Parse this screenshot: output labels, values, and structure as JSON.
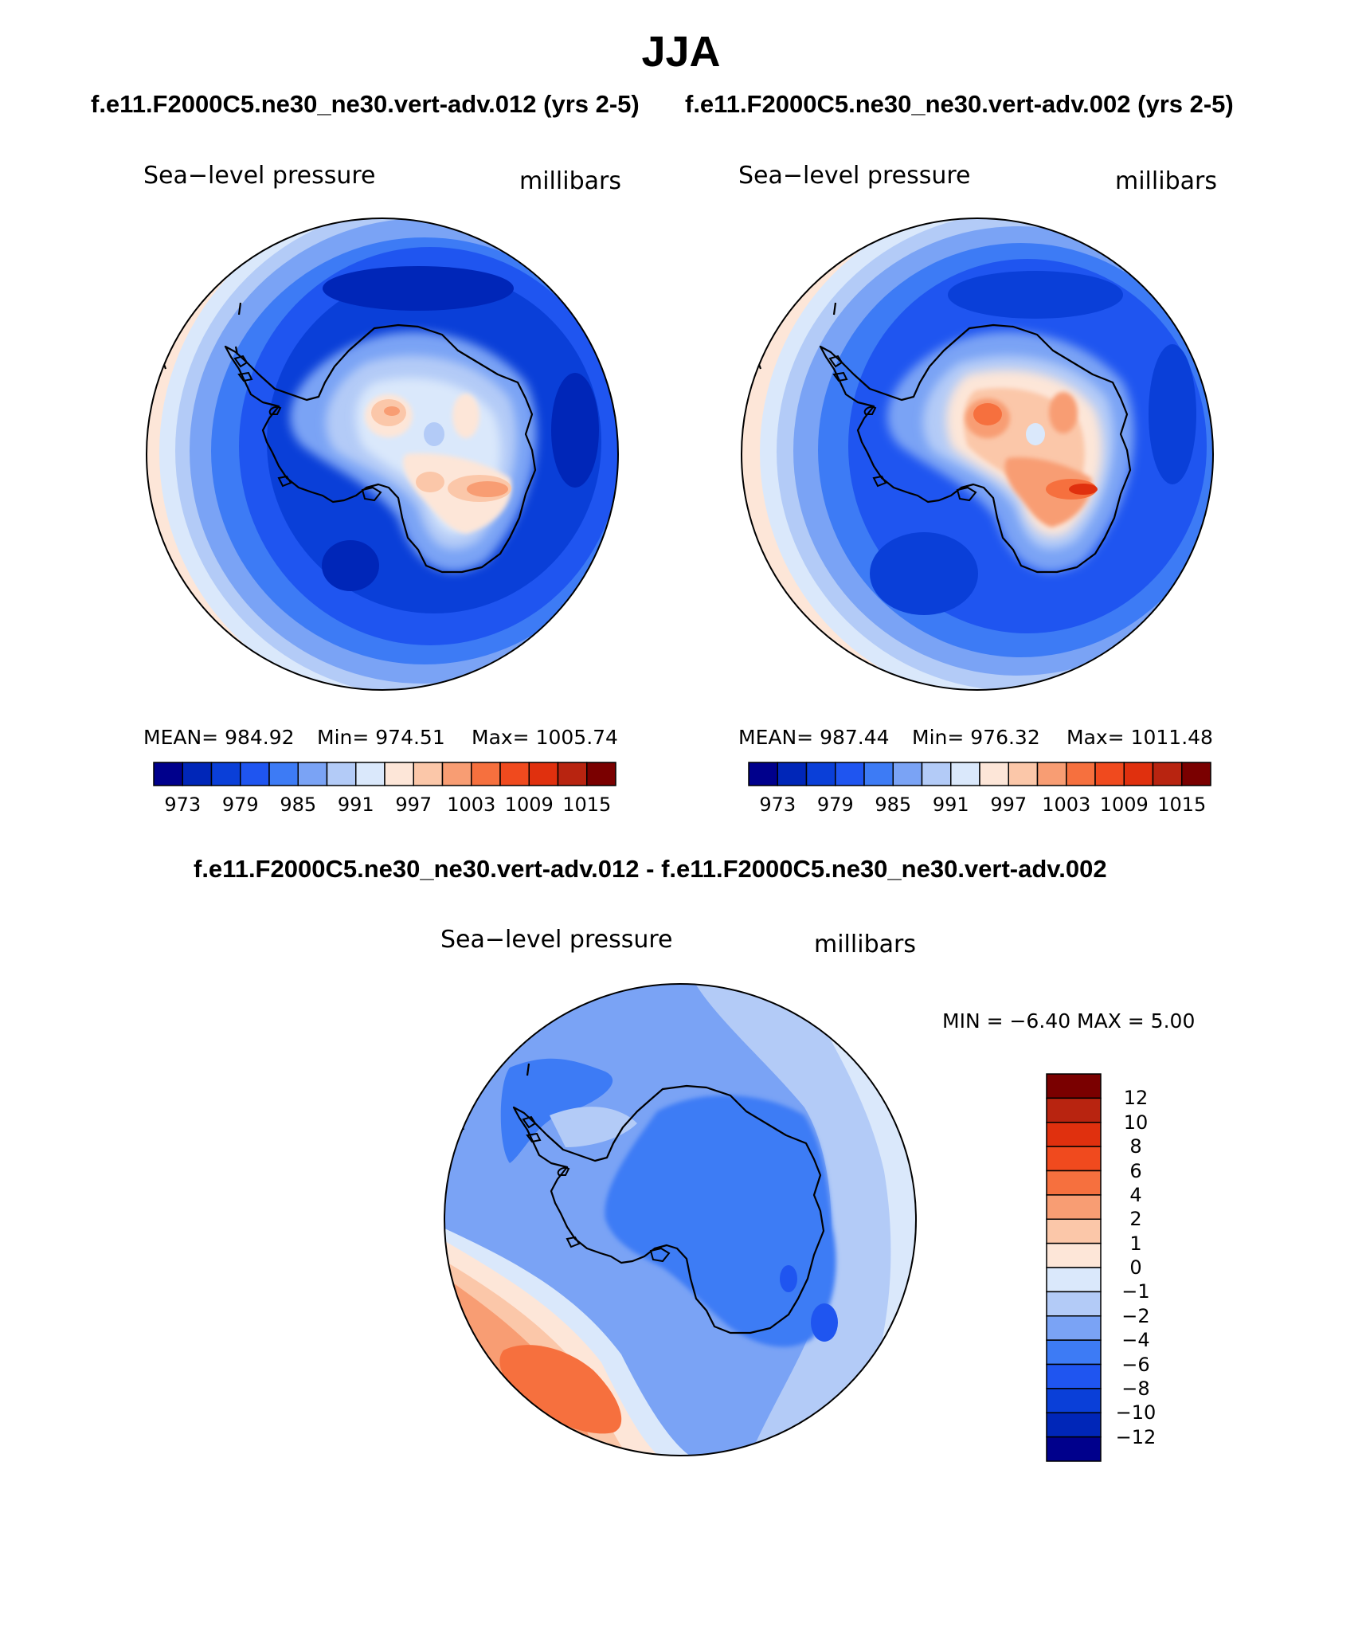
{
  "title": "JJA",
  "case_a": "f.e11.F2000C5.ne30_ne30.vert-adv.012 (yrs 2-5)",
  "case_b": "f.e11.F2000C5.ne30_ne30.vert-adv.002 (yrs 2-5)",
  "diff_title": "f.e11.F2000C5.ne30_ne30.vert-adv.012 - f.e11.F2000C5.ne30_ne30.vert-adv.002",
  "panels": [
    {
      "variable": "Sea−level pressure",
      "units": "millibars",
      "mean_label": "MEAN=  984.92",
      "min_label": "Min=  974.51",
      "max_label": "Max=  1005.74",
      "colorbar_ticks": [
        "973",
        "979",
        "985",
        "991",
        "997",
        "1003",
        "1009",
        "1015"
      ]
    },
    {
      "variable": "Sea−level pressure",
      "units": "millibars",
      "mean_label": "MEAN=  987.44",
      "min_label": "Min=  976.32",
      "max_label": "Max=  1011.48",
      "colorbar_ticks": [
        "973",
        "979",
        "985",
        "991",
        "997",
        "1003",
        "1009",
        "1015"
      ]
    }
  ],
  "diff_panel": {
    "variable": "Sea−level pressure",
    "units": "millibars",
    "minmax_label": "MIN =   −6.40  MAX =     5.00",
    "colorbar_ticks": [
      "12",
      "10",
      "8",
      "6",
      "4",
      "2",
      "1",
      "0",
      "−1",
      "−2",
      "−4",
      "−6",
      "−8",
      "−10",
      "−12"
    ]
  },
  "colors": {
    "abs_scale": [
      "#00008c",
      "#0026b8",
      "#0a3fd8",
      "#1f55f0",
      "#3d7bf5",
      "#7aa3f5",
      "#b3cbf7",
      "#dae8fb",
      "#fde6d8",
      "#fbc7a9",
      "#f89d73",
      "#f6703e",
      "#f04a1e",
      "#e0300e",
      "#b82410",
      "#7a0000"
    ],
    "diff_scale_top_down": [
      "#7a0000",
      "#b82410",
      "#e0300e",
      "#f04a1e",
      "#f6703e",
      "#f89d73",
      "#fbc7a9",
      "#fde6d8",
      "#dae8fb",
      "#b3cbf7",
      "#7aa3f5",
      "#3d7bf5",
      "#1f55f0",
      "#0a3fd8",
      "#0026b8",
      "#00008c"
    ]
  }
}
